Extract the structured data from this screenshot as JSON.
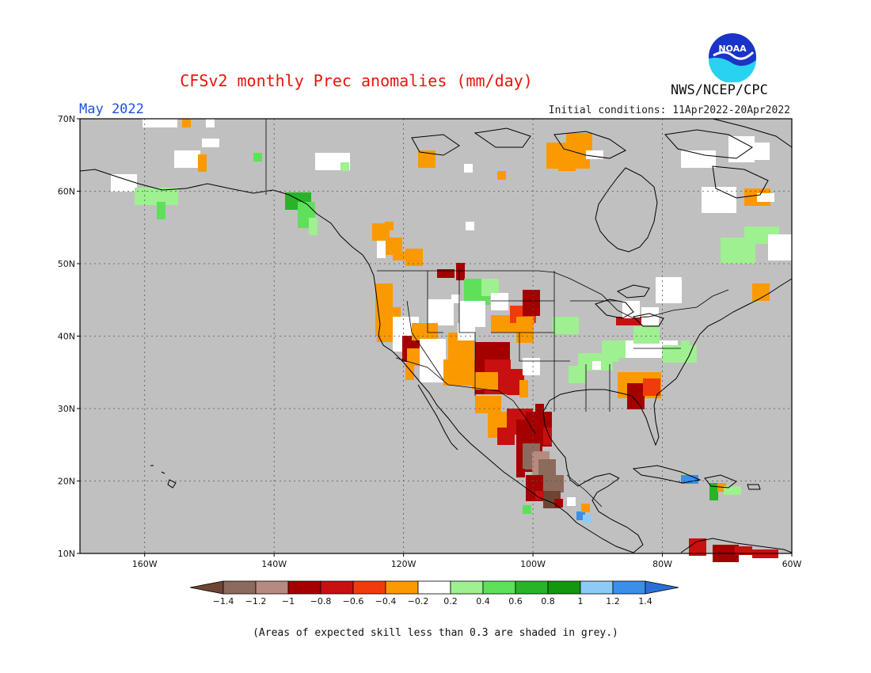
{
  "header": {
    "title": "CFSv2 monthly Prec anomalies (mm/day)",
    "month": "May 2022",
    "initial_conditions": "Initial conditions: 11Apr2022-20Apr2022",
    "organization": "NWS/NCEP/CPC",
    "logo_text": "NOAA"
  },
  "map": {
    "lat_labels": [
      "70N",
      "60N",
      "50N",
      "40N",
      "30N",
      "20N",
      "10N"
    ],
    "lon_labels": [
      "160W",
      "140W",
      "120W",
      "100W",
      "80W",
      "60W"
    ],
    "background_color": "#c0c0c0",
    "land_outline_color": "#000000"
  },
  "colorbar": {
    "labels": [
      "-1.4",
      "-1.2",
      "-1",
      "-0.8",
      "-0.6",
      "-0.4",
      "-0.2",
      "0.2",
      "0.4",
      "0.6",
      "0.8",
      "1",
      "1.2",
      "1.4"
    ],
    "colors": [
      "#6e4535",
      "#8c6a5c",
      "#b78a80",
      "#a40000",
      "#c81010",
      "#f03c0c",
      "#fa9a00",
      "#ffffff",
      "#9ef090",
      "#5fe05a",
      "#28b428",
      "#14960f",
      "#8ecaf7",
      "#3a8fe8",
      "#2a6fd8"
    ]
  },
  "footnote": "(Areas of expected skill less than 0.3 are shaded in grey.)"
}
